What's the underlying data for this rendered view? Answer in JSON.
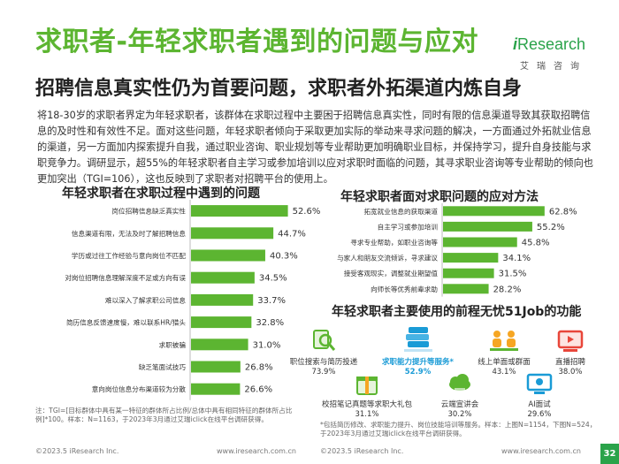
{
  "header": {
    "title": "求职者-年轻求职者遇到的问题与应对",
    "subtitle": "招聘信息真实性仍为首要问题，求职者外拓渠道内炼自身"
  },
  "logo": {
    "brand_i": "i",
    "brand_rest": "Research",
    "cn": "艾瑞咨询"
  },
  "intro": "将18-30岁的求职者界定为年轻求职者，该群体在求职过程中主要困于招聘信息真实性，同时有限的信息渠道导致其获取招聘信息的及时性和有效性不足。面对这些问题，年轻求职者倾向于采取更加实际的举动来寻求问题的解决，一方面通过外拓就业信息的渠道，另一方面加内探索提升自我，通过职业咨询、职业规划等专业帮助更加明确职业目标，并保持学习，提升自身技能与求职竞争力。调研显示，超55%的年轻求职者自主学习或参加培训以应对求职时面临的问题，其寻求职业咨询等专业帮助的倾向也更加突出（TGI=106），这也反映到了求职者对招聘平台的使用上。",
  "chart_data": [
    {
      "type": "bar",
      "orientation": "horizontal",
      "title": "年轻求职者在求职过程中遇到的问题",
      "categories": [
        "岗位招聘信息缺乏真实性",
        "信息渠道有限，无法及时了解招聘信息",
        "学历或过往工作经验与意向岗位不匹配",
        "对岗位招聘信息理解深度不足或方向有误",
        "难以深入了解求职公司信息",
        "简历信息反馈速度慢，难以联系HR/猎头",
        "求职被骗",
        "缺乏笔面试技巧",
        "意向岗位信息分布渠道较为分散"
      ],
      "values": [
        52.6,
        44.7,
        40.3,
        34.5,
        33.7,
        32.8,
        31.0,
        26.8,
        26.6
      ],
      "labels": [
        "52.6%",
        "44.7%",
        "40.3%",
        "34.5%",
        "33.7%",
        "32.8%",
        "31.0%",
        "26.8%",
        "26.6%"
      ],
      "xlim": [
        0,
        60
      ],
      "color": "#5cb531"
    },
    {
      "type": "bar",
      "orientation": "horizontal",
      "title": "年轻求职者面对求职问题的应对方法",
      "categories": [
        "拓宽就业信息的获取渠道",
        "自主学习或参加培训",
        "寻求专业帮助，如职业咨询等",
        "与家人和朋友交流倾诉，寻求建议",
        "接受客观现实，调整就业期望值",
        "向师长等优秀前辈求助"
      ],
      "values": [
        62.8,
        55.2,
        45.8,
        34.1,
        31.5,
        28.2
      ],
      "labels": [
        "62.8%",
        "55.2%",
        "45.8%",
        "34.1%",
        "31.5%",
        "28.2%"
      ],
      "xlim": [
        0,
        70
      ],
      "color": "#5cb531"
    }
  ],
  "functions": {
    "title": "年轻求职者主要使用的前程无忧51Job的功能",
    "items": [
      {
        "label": "职位搜索与简历投递",
        "pct": "73.9%",
        "icon": "search-icon",
        "highlight": false
      },
      {
        "label": "求职能力提升等服务*",
        "pct": "52.9%",
        "icon": "stack-books-icon",
        "highlight": true
      },
      {
        "label": "线上单面或群面",
        "pct": "43.1%",
        "icon": "interview-icon",
        "highlight": false
      },
      {
        "label": "直播招聘",
        "pct": "38.0%",
        "icon": "tv-icon",
        "highlight": false
      },
      {
        "label": "校招笔记真题等求职大礼包",
        "pct": "31.1%",
        "icon": "gift-box-icon",
        "highlight": false
      },
      {
        "label": "云端宣讲会",
        "pct": "30.2%",
        "icon": "cloud-icon",
        "highlight": false
      },
      {
        "label": "AI面试",
        "pct": "29.6%",
        "icon": "ai-monitor-icon",
        "highlight": false
      }
    ]
  },
  "notes": {
    "left": "注：TGI=[目标群体中具有某一特征的群体所占比例/总体中具有相同特征的群体所占比例]*100。样本：N=1163，于2023年3月通过艾瑞iclick在线平台调研获得。",
    "right": "*包括简历修改、求职能力提升、岗位技能培训等服务。样本：上图N=1154，下图N=524，于2023年3月通过艾瑞iclick在线平台调研获得。"
  },
  "footer": {
    "left_copyright": "©2023.5 iResearch Inc.",
    "left_url": "www.iresearch.com.cn",
    "right_copyright": "©2023.5 iResearch Inc.",
    "right_url": "www.iresearch.com.cn",
    "page": "32"
  }
}
